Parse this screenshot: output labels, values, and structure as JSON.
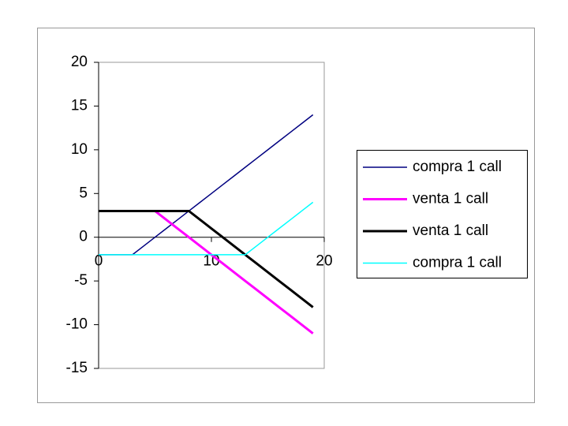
{
  "chart_data": {
    "type": "line",
    "x": [
      0,
      1,
      2,
      3,
      4,
      5,
      6,
      7,
      8,
      9,
      10,
      11,
      12,
      13,
      14,
      15,
      16,
      17,
      18,
      19
    ],
    "series": [
      {
        "name": "compra 1 call",
        "color": "#000080",
        "width": 1.5,
        "values": [
          -2,
          -2,
          -2,
          -2,
          -1,
          0,
          1,
          2,
          3,
          4,
          5,
          6,
          7,
          8,
          9,
          10,
          11,
          12,
          13,
          14
        ]
      },
      {
        "name": "venta 1 call",
        "color": "#ff00ff",
        "width": 3,
        "values": [
          3,
          3,
          3,
          3,
          3,
          3,
          2,
          1,
          0,
          -1,
          -2,
          -3,
          -4,
          -5,
          -6,
          -7,
          -8,
          -9,
          -10,
          -11
        ]
      },
      {
        "name": "venta 1 call",
        "color": "#000000",
        "width": 3,
        "values": [
          3,
          3,
          3,
          3,
          3,
          3,
          3,
          3,
          3,
          2,
          1,
          0,
          -1,
          -2,
          -3,
          -4,
          -5,
          -6,
          -7,
          -8
        ]
      },
      {
        "name": "compra 1 call",
        "color": "#00ffff",
        "width": 1.5,
        "values": [
          -2,
          -2,
          -2,
          -2,
          -2,
          -2,
          -2,
          -2,
          -2,
          -2,
          -2,
          -2,
          -2,
          -2,
          -1,
          0,
          1,
          2,
          3,
          4
        ]
      }
    ],
    "xlim": [
      0,
      20
    ],
    "xticks": [
      0,
      10,
      20
    ],
    "ylim": [
      -15,
      20
    ],
    "yticks": [
      -15,
      -10,
      -5,
      0,
      5,
      10,
      15,
      20
    ],
    "grid": false,
    "legend": "right"
  }
}
